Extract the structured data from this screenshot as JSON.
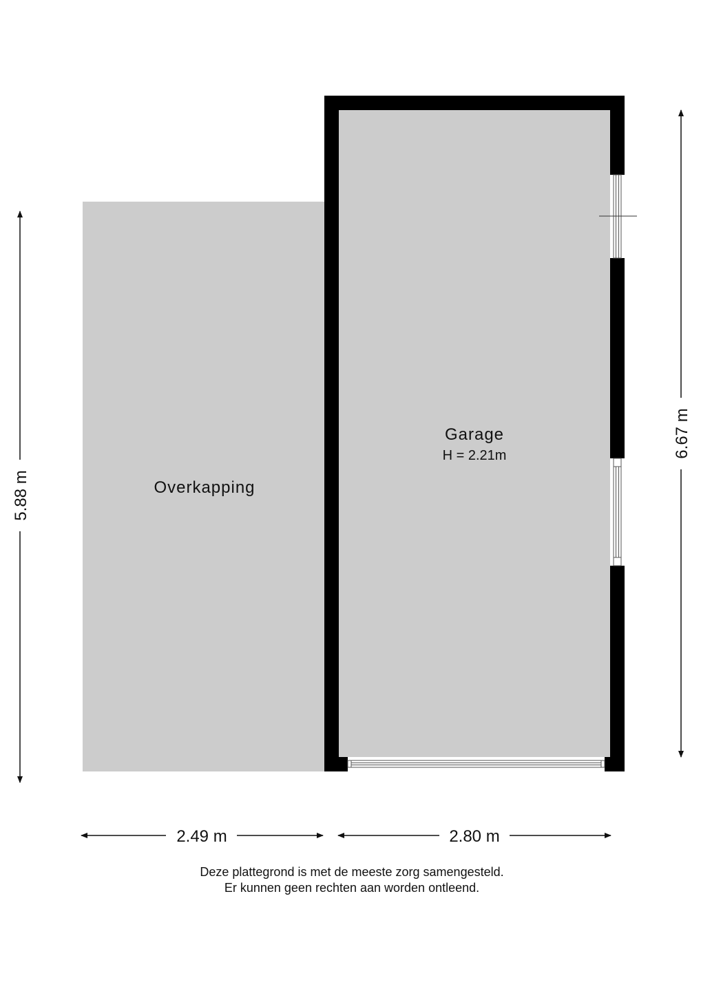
{
  "rooms": {
    "overkapping": {
      "name": "Overkapping"
    },
    "garage": {
      "name": "Garage",
      "height": "H = 2.21m"
    }
  },
  "dimensions": {
    "left_height": "5.88 m",
    "right_height": "6.67 m",
    "bottom_left_width": "2.49 m",
    "bottom_right_width": "2.80 m"
  },
  "disclaimer": {
    "line1": "Deze plattegrond is met de meeste zorg samengesteld.",
    "line2": "Er kunnen geen rechten aan worden ontleend."
  },
  "colors": {
    "floor": "#cccccc",
    "wall": "#000000"
  }
}
